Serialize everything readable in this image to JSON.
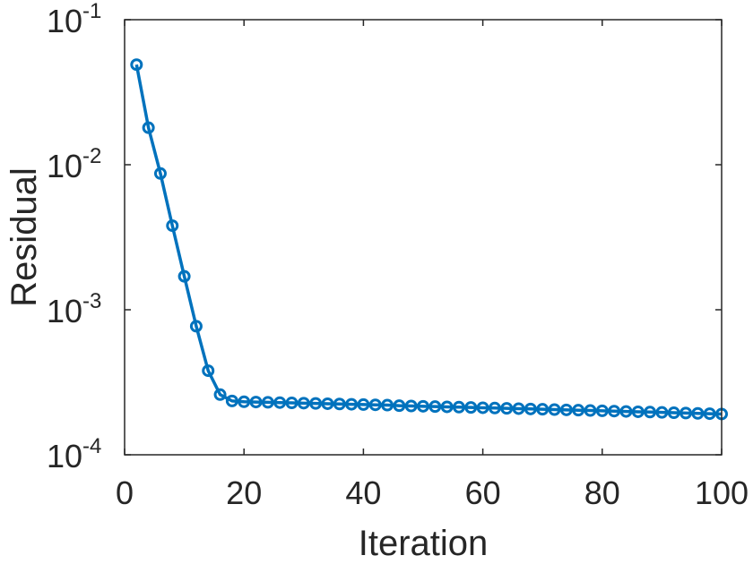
{
  "chart_data": {
    "type": "line",
    "xlabel": "Iteration",
    "ylabel": "Residual",
    "xlim": [
      0,
      100
    ],
    "ylim": [
      0.0001,
      0.1
    ],
    "yscale": "log",
    "grid": false,
    "color": "#0072BD",
    "marker": "circle",
    "xticks": [
      "0",
      "20",
      "40",
      "60",
      "80",
      "100"
    ],
    "yticks": [
      {
        "base": "10",
        "exp": "-1"
      },
      {
        "base": "10",
        "exp": "-2"
      },
      {
        "base": "10",
        "exp": "-3"
      },
      {
        "base": "10",
        "exp": "-4"
      }
    ],
    "series": [
      {
        "x": [
          2,
          4,
          6,
          8,
          10,
          12,
          14,
          16,
          18,
          20,
          22,
          24,
          26,
          28,
          30,
          32,
          34,
          36,
          38,
          40,
          42,
          44,
          46,
          48,
          50,
          52,
          54,
          56,
          58,
          60,
          62,
          64,
          66,
          68,
          70,
          72,
          74,
          76,
          78,
          80,
          82,
          84,
          86,
          88,
          90,
          92,
          94,
          96,
          98,
          100
        ],
        "y": [
          0.049,
          0.018,
          0.0087,
          0.0038,
          0.0017,
          0.00077,
          0.00038,
          0.00026,
          0.000235,
          0.000232,
          0.000231,
          0.00023,
          0.000229,
          0.000228,
          0.000227,
          0.000226,
          0.000225,
          0.000224,
          0.000223,
          0.000222,
          0.000221,
          0.00022,
          0.000218,
          0.000217,
          0.000216,
          0.000215,
          0.000214,
          0.000213,
          0.000212,
          0.000211,
          0.00021,
          0.000209,
          0.000208,
          0.000207,
          0.000206,
          0.000205,
          0.000204,
          0.000203,
          0.000202,
          0.000201,
          0.0002,
          0.000199,
          0.000198,
          0.000197,
          0.000196,
          0.000195,
          0.000194,
          0.000193,
          0.000192,
          0.000191
        ]
      }
    ]
  }
}
